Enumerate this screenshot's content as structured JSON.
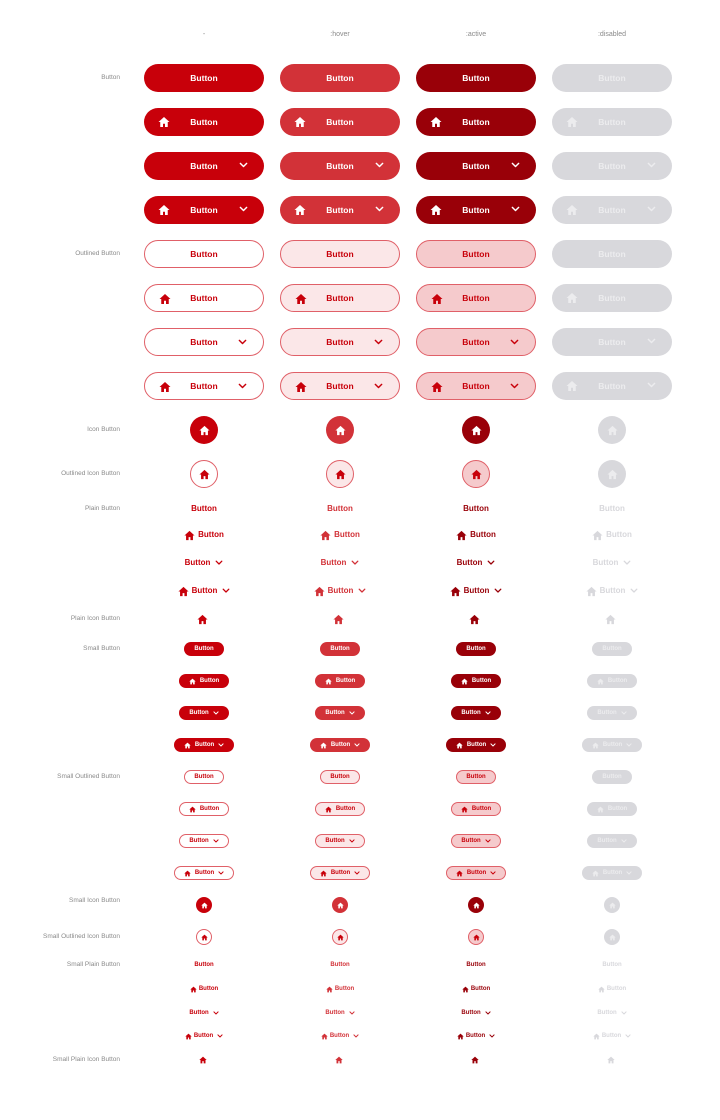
{
  "columns": [
    "-",
    ":hover",
    ":active",
    ":disabled"
  ],
  "row_labels": {
    "button": "Button",
    "outlined_button": "Outlined Button",
    "icon_button": "Icon Button",
    "outlined_icon_button": "Outlined Icon Button",
    "plain_button": "Plain Button",
    "plain_icon_button": "Plain Icon Button",
    "small_button": "Small Button",
    "small_outlined_button": "Small Outlined Button",
    "small_icon_button": "Small Icon Button",
    "small_outlined_icon_button": "Small Outlined Icon Button",
    "small_plain_button": "Small Plain Button",
    "small_plain_icon_button": "Small Plain Icon Button"
  },
  "button_label": "Button",
  "icons": {
    "leading": "home-icon",
    "trailing": "chevron-down-icon"
  },
  "colors": {
    "primary": "#c8000a",
    "hover": "#d23238",
    "active": "#990008",
    "disabled": "#d8d8dc",
    "outline_hover_bg": "#fbe7e8",
    "outline_active_bg": "#f5cacc"
  }
}
